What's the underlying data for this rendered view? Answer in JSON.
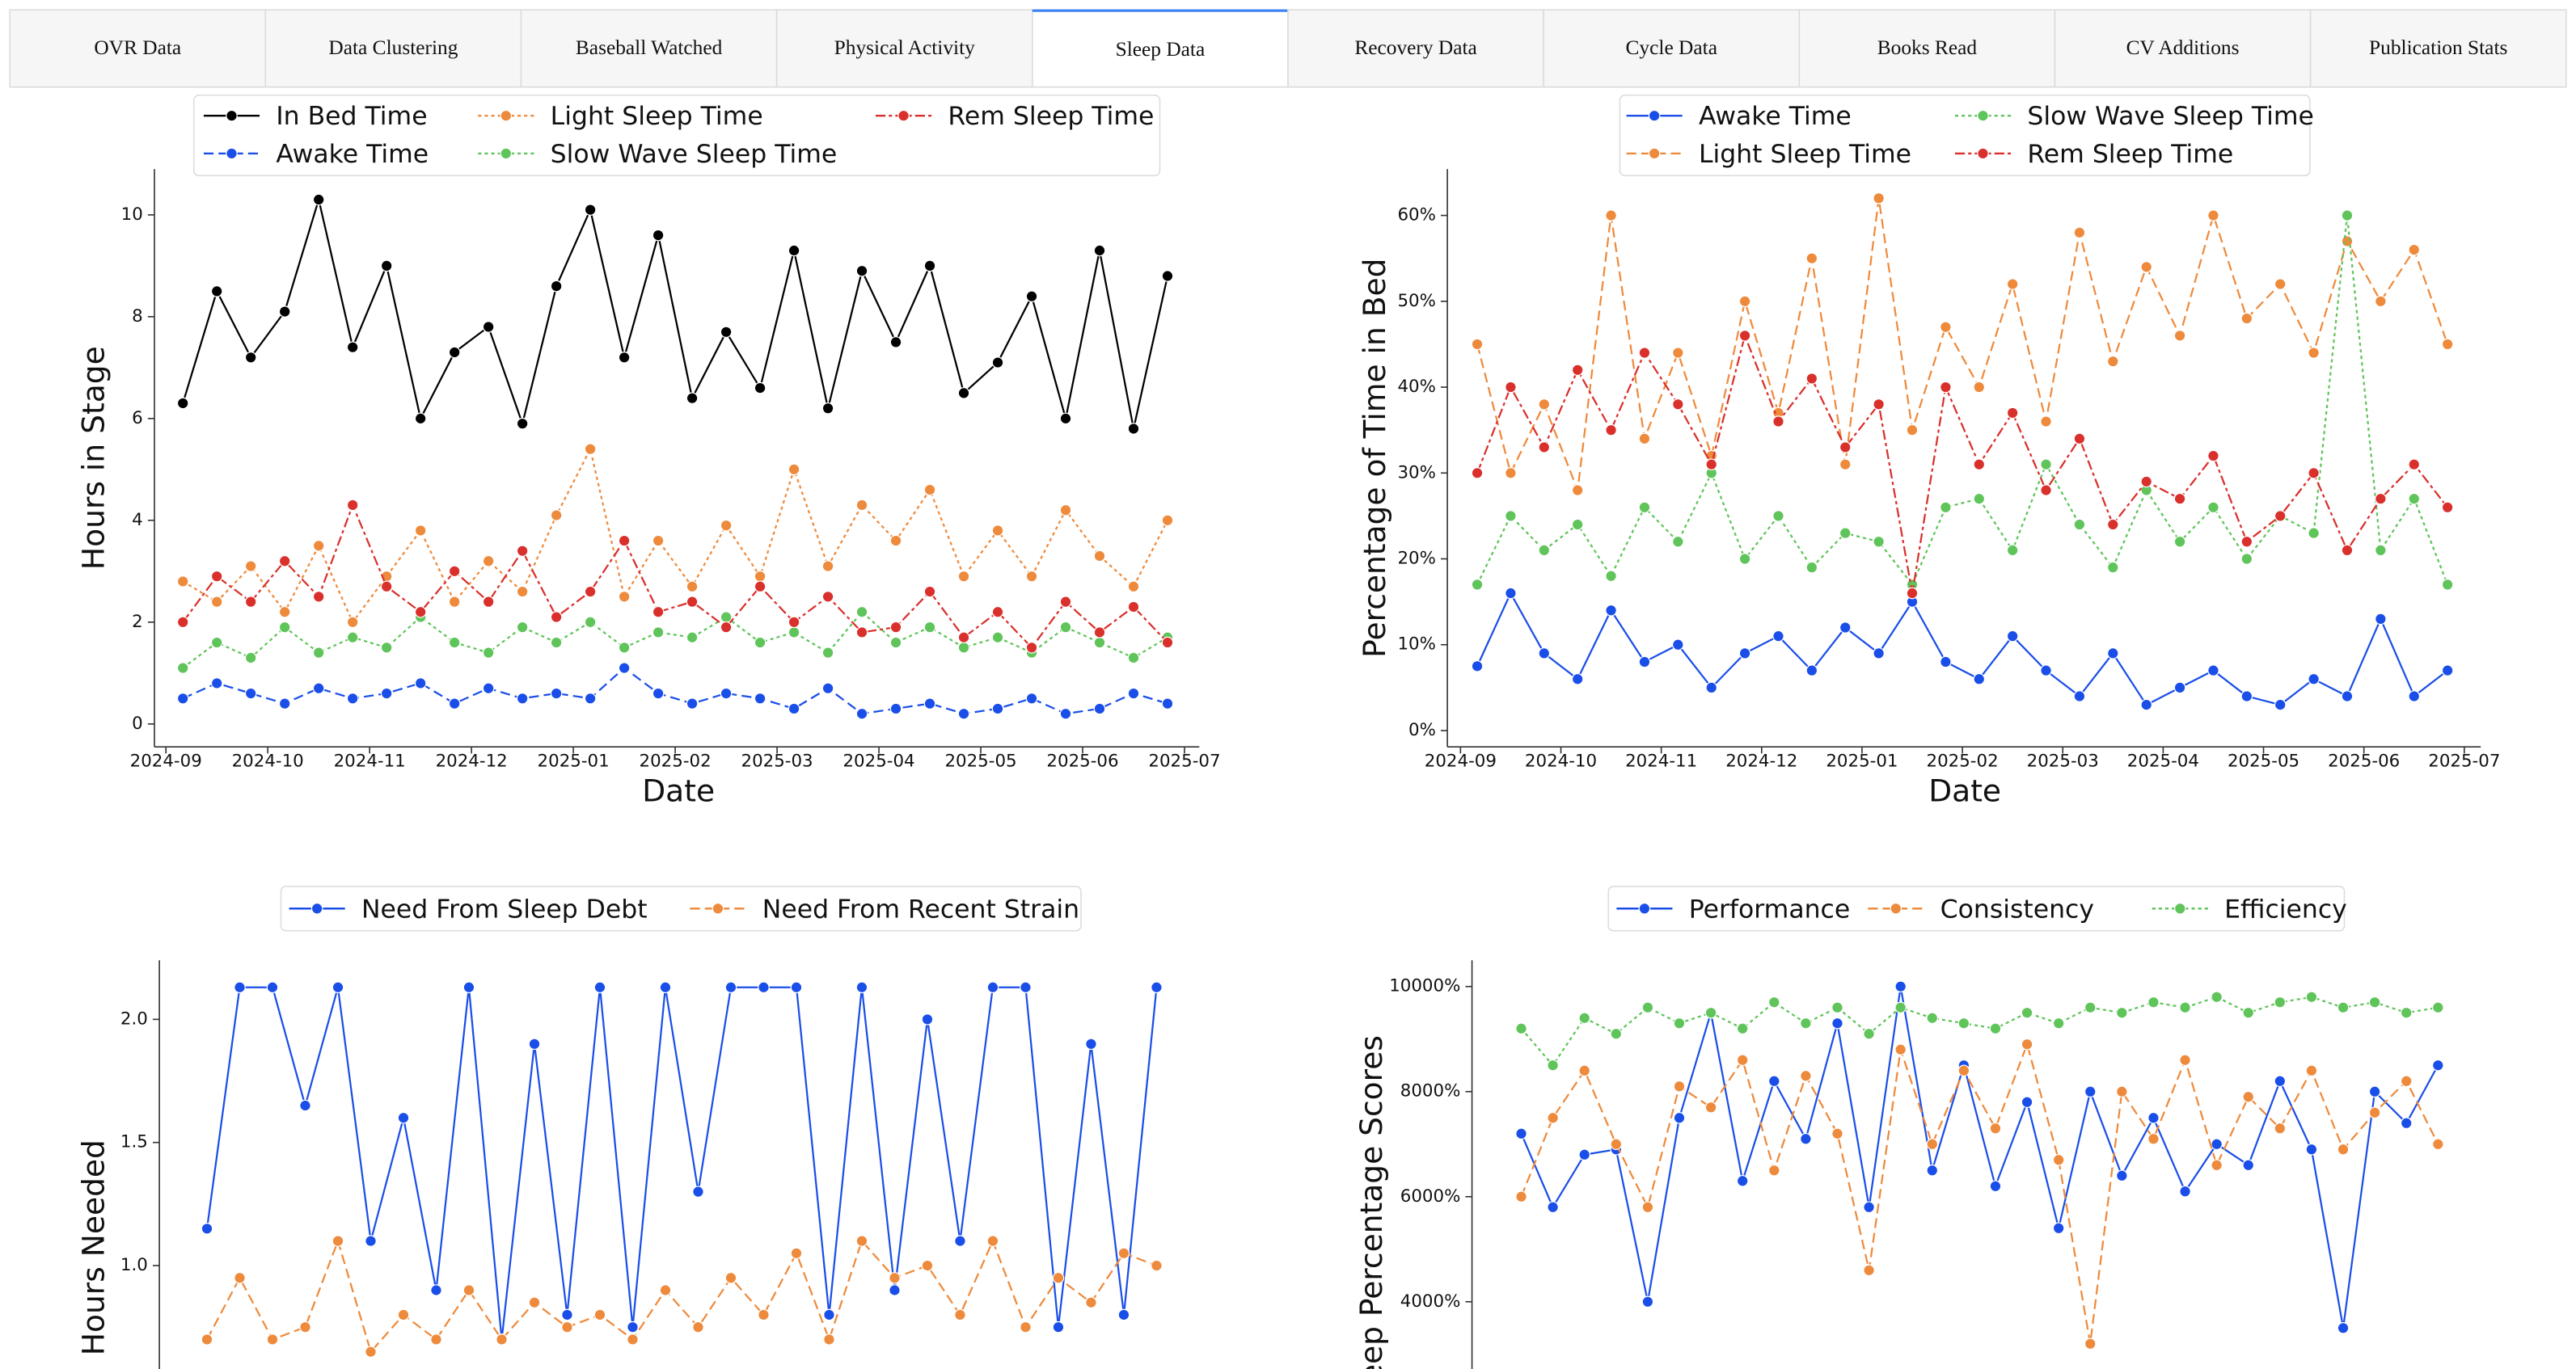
{
  "tabs": [
    "OVR Data",
    "Data Clustering",
    "Baseball Watched",
    "Physical Activity",
    "Sleep Data",
    "Recovery Data",
    "Cycle Data",
    "Books Read",
    "CV Additions",
    "Publication Stats"
  ],
  "chart_data": [
    {
      "type": "line",
      "y_label": "Hours in Stage",
      "x_label": "Date",
      "x": [
        "2024-09",
        "2024-09",
        "2024-09",
        "2024-10",
        "2024-10",
        "2024-10",
        "2024-11",
        "2024-11",
        "2024-11",
        "2024-12",
        "2024-12",
        "2024-12",
        "2025-01",
        "2025-01",
        "2025-01",
        "2025-02",
        "2025-02",
        "2025-02",
        "2025-03",
        "2025-03",
        "2025-03",
        "2025-04",
        "2025-04",
        "2025-04",
        "2025-05",
        "2025-05",
        "2025-05",
        "2025-06",
        "2025-06",
        "2025-06"
      ],
      "xticks": [
        "2024-09",
        "2024-10",
        "2024-11",
        "2024-12",
        "2025-01",
        "2025-02",
        "2025-03",
        "2025-04",
        "2025-05",
        "2025-06",
        "2025-07"
      ],
      "ylim": [
        -0.45,
        10.9
      ],
      "yticks": [
        0,
        2,
        4,
        6,
        8,
        10
      ],
      "series": [
        {
          "name": "In Bed Time",
          "color": "#000000",
          "linestyle": "solid",
          "values": [
            6.3,
            8.5,
            7.2,
            8.1,
            10.3,
            7.4,
            9.0,
            6.0,
            7.3,
            7.8,
            5.9,
            8.6,
            10.1,
            7.2,
            9.6,
            6.4,
            7.7,
            6.6,
            9.3,
            6.2,
            8.9,
            7.5,
            9.0,
            6.5,
            7.1,
            8.4,
            6.0,
            9.3,
            5.8,
            8.8
          ]
        },
        {
          "name": "Awake Time",
          "color": "#1a4ee8",
          "linestyle": "dashed",
          "values": [
            0.5,
            0.8,
            0.6,
            0.4,
            0.7,
            0.5,
            0.6,
            0.8,
            0.4,
            0.7,
            0.5,
            0.6,
            0.5,
            1.1,
            0.6,
            0.4,
            0.6,
            0.5,
            0.3,
            0.7,
            0.2,
            0.3,
            0.4,
            0.2,
            0.3,
            0.5,
            0.2,
            0.3,
            0.6,
            0.4
          ]
        },
        {
          "name": "Light Sleep Time",
          "color": "#ee8a3c",
          "linestyle": "dotted",
          "values": [
            2.8,
            2.4,
            3.1,
            2.2,
            3.5,
            2.0,
            2.9,
            3.8,
            2.4,
            3.2,
            2.6,
            4.1,
            5.4,
            2.5,
            3.6,
            2.7,
            3.9,
            2.9,
            5.0,
            3.1,
            4.3,
            3.6,
            4.6,
            2.9,
            3.8,
            2.9,
            4.2,
            3.3,
            2.7,
            4.0
          ]
        },
        {
          "name": "Slow Wave Sleep Time",
          "color": "#5fc45a",
          "linestyle": "dotted",
          "values": [
            1.1,
            1.6,
            1.3,
            1.9,
            1.4,
            1.7,
            1.5,
            2.1,
            1.6,
            1.4,
            1.9,
            1.6,
            2.0,
            1.5,
            1.8,
            1.7,
            2.1,
            1.6,
            1.8,
            1.4,
            2.2,
            1.6,
            1.9,
            1.5,
            1.7,
            1.4,
            1.9,
            1.6,
            1.3,
            1.7
          ]
        },
        {
          "name": "Rem Sleep Time",
          "color": "#d9302c",
          "linestyle": "dashdot",
          "values": [
            2.0,
            2.9,
            2.4,
            3.2,
            2.5,
            4.3,
            2.7,
            2.2,
            3.0,
            2.4,
            3.4,
            2.1,
            2.6,
            3.6,
            2.2,
            2.4,
            1.9,
            2.7,
            2.0,
            2.5,
            1.8,
            1.9,
            2.6,
            1.7,
            2.2,
            1.5,
            2.4,
            1.8,
            2.3,
            1.6
          ]
        }
      ]
    },
    {
      "type": "line",
      "y_label": "Percentage of Time in Bed",
      "x_label": "Date",
      "x": [
        "2024-09",
        "2024-09",
        "2024-09",
        "2024-10",
        "2024-10",
        "2024-10",
        "2024-11",
        "2024-11",
        "2024-11",
        "2024-12",
        "2024-12",
        "2024-12",
        "2025-01",
        "2025-01",
        "2025-01",
        "2025-02",
        "2025-02",
        "2025-02",
        "2025-03",
        "2025-03",
        "2025-03",
        "2025-04",
        "2025-04",
        "2025-04",
        "2025-05",
        "2025-05",
        "2025-05",
        "2025-06",
        "2025-06",
        "2025-06"
      ],
      "xticks": [
        "2024-09",
        "2024-10",
        "2024-11",
        "2024-12",
        "2025-01",
        "2025-02",
        "2025-03",
        "2025-04",
        "2025-05",
        "2025-06",
        "2025-07"
      ],
      "ylim": [
        -1.9,
        65.4
      ],
      "yticks": [
        {
          "value": 0,
          "label": "0%"
        },
        {
          "value": 10,
          "label": "10%"
        },
        {
          "value": 20,
          "label": "20%"
        },
        {
          "value": 30,
          "label": "30%"
        },
        {
          "value": 40,
          "label": "40%"
        },
        {
          "value": 50,
          "label": "50%"
        },
        {
          "value": 60,
          "label": "60%"
        }
      ],
      "series": [
        {
          "name": "Awake Time",
          "color": "#1a4ee8",
          "linestyle": "solid",
          "values": [
            7.5,
            16,
            9,
            6,
            14,
            8,
            10,
            5,
            9,
            11,
            7,
            12,
            9,
            15,
            8,
            6,
            11,
            7,
            4,
            9,
            3,
            5,
            7,
            4,
            3,
            6,
            4,
            13,
            4,
            7
          ]
        },
        {
          "name": "Light Sleep Time",
          "color": "#ee8a3c",
          "linestyle": "dashed",
          "values": [
            45,
            30,
            38,
            28,
            60,
            34,
            44,
            32,
            50,
            37,
            55,
            31,
            62,
            35,
            47,
            40,
            52,
            36,
            58,
            43,
            54,
            46,
            60,
            48,
            52,
            44,
            57,
            50,
            56,
            45
          ]
        },
        {
          "name": "Slow Wave Sleep Time",
          "color": "#5fc45a",
          "linestyle": "dotted",
          "values": [
            17,
            25,
            21,
            24,
            18,
            26,
            22,
            30,
            20,
            25,
            19,
            23,
            22,
            17,
            26,
            27,
            21,
            31,
            24,
            19,
            28,
            22,
            26,
            20,
            25,
            23,
            60,
            21,
            27,
            17
          ]
        },
        {
          "name": "Rem Sleep Time",
          "color": "#d9302c",
          "linestyle": "dashdot",
          "values": [
            30,
            40,
            33,
            42,
            35,
            44,
            38,
            31,
            46,
            36,
            41,
            33,
            38,
            16,
            40,
            31,
            37,
            28,
            34,
            24,
            29,
            27,
            32,
            22,
            25,
            30,
            21,
            27,
            31,
            26
          ]
        }
      ]
    },
    {
      "type": "line",
      "y_label": "Hours Needed",
      "ylim": [
        0.58,
        2.24
      ],
      "yticks": [
        {
          "value": 1,
          "label": "1.0"
        },
        1.5,
        {
          "value": 2,
          "label": "2.0"
        }
      ],
      "series": [
        {
          "name": "Need From Sleep Debt",
          "color": "#1a4ee8",
          "linestyle": "solid",
          "values": [
            1.15,
            2.13,
            2.13,
            1.65,
            2.13,
            1.1,
            1.6,
            0.9,
            2.13,
            0.7,
            1.9,
            0.8,
            2.13,
            0.75,
            2.13,
            1.3,
            2.13,
            2.13,
            2.13,
            0.8,
            2.13,
            0.9,
            2.0,
            1.1,
            2.13,
            2.13,
            0.75,
            1.9,
            0.8,
            2.13
          ]
        },
        {
          "name": "Need From Recent Strain",
          "color": "#ee8a3c",
          "linestyle": "dashed",
          "values": [
            0.7,
            0.95,
            0.7,
            0.75,
            1.1,
            0.65,
            0.8,
            0.7,
            0.9,
            0.7,
            0.85,
            0.75,
            0.8,
            0.7,
            0.9,
            0.75,
            0.95,
            0.8,
            1.05,
            0.7,
            1.1,
            0.95,
            1.0,
            0.8,
            1.1,
            0.75,
            0.95,
            0.85,
            1.05,
            1.0
          ]
        }
      ]
    },
    {
      "type": "line",
      "y_label": "Sleep Percentage Scores",
      "ylim": [
        2720,
        10500
      ],
      "yticks": [
        {
          "value": 4000,
          "label": "4000%"
        },
        {
          "value": 6000,
          "label": "6000%"
        },
        {
          "value": 8000,
          "label": "8000%"
        },
        {
          "value": 10000,
          "label": "10000%"
        }
      ],
      "series": [
        {
          "name": "Performance",
          "color": "#1a4ee8",
          "linestyle": "solid",
          "values": [
            7200,
            5800,
            6800,
            6900,
            4000,
            7500,
            9500,
            6300,
            8200,
            7100,
            9300,
            5800,
            10000,
            6500,
            8500,
            6200,
            7800,
            5400,
            8000,
            6400,
            7500,
            6100,
            7000,
            6600,
            8200,
            6900,
            3500,
            8000,
            7400,
            8500
          ]
        },
        {
          "name": "Consistency",
          "color": "#ee8a3c",
          "linestyle": "dashed",
          "values": [
            6000,
            7500,
            8400,
            7000,
            5800,
            8100,
            7700,
            8600,
            6500,
            8300,
            7200,
            4600,
            8800,
            7000,
            8400,
            7300,
            8900,
            6700,
            3200,
            8000,
            7100,
            8600,
            6600,
            7900,
            7300,
            8400,
            6900,
            7600,
            8200,
            7000
          ]
        },
        {
          "name": "Efficiency",
          "color": "#5fc45a",
          "linestyle": "dotted",
          "values": [
            9200,
            8500,
            9400,
            9100,
            9600,
            9300,
            9500,
            9200,
            9700,
            9300,
            9600,
            9100,
            9600,
            9400,
            9300,
            9200,
            9500,
            9300,
            9600,
            9500,
            9700,
            9600,
            9800,
            9500,
            9700,
            9800,
            9600,
            9700,
            9500,
            9600
          ]
        }
      ]
    }
  ]
}
